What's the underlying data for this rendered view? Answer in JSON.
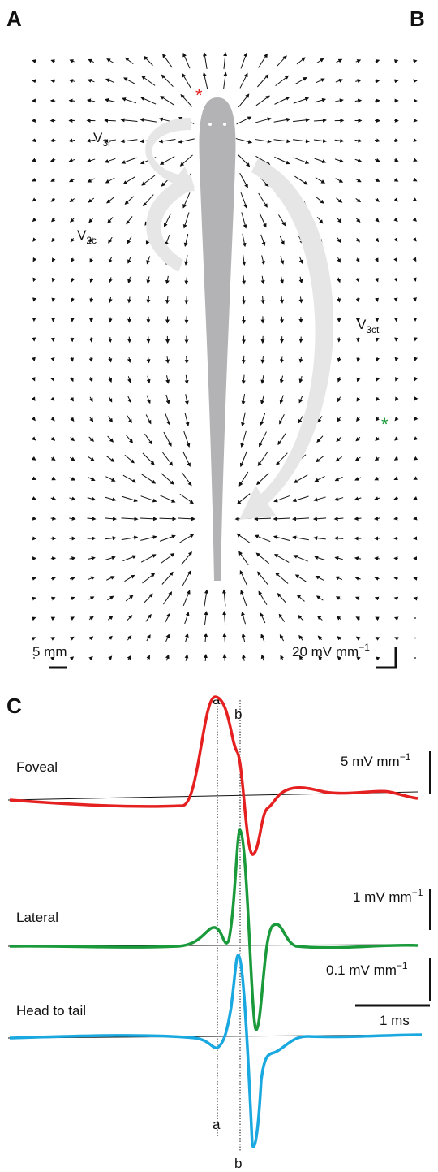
{
  "panels": {
    "a": "A",
    "b": "B",
    "c": "C"
  },
  "field_labels": [
    {
      "main": "V",
      "sub": "3r"
    },
    {
      "main": "V",
      "sub": "2c"
    },
    {
      "main": "V",
      "sub": "3ct"
    }
  ],
  "scale_bars": {
    "length": "5 mm",
    "field": {
      "main": "20 mV mm",
      "sup": "−1"
    }
  },
  "traces": [
    {
      "name": "Foveal",
      "scale": {
        "main": "5 mV mm",
        "sup": "−1"
      }
    },
    {
      "name": "Lateral",
      "scale": {
        "main": "1 mV mm",
        "sup": "−1"
      }
    },
    {
      "name": "Head to tail",
      "scale": {
        "main": "0.1 mV mm",
        "sup": "−1"
      }
    }
  ],
  "time_scale": "1 ms",
  "markers": {
    "top": [
      "a",
      "b"
    ],
    "bottom": [
      "a",
      "b"
    ]
  },
  "stars": [
    "*",
    "*"
  ]
}
